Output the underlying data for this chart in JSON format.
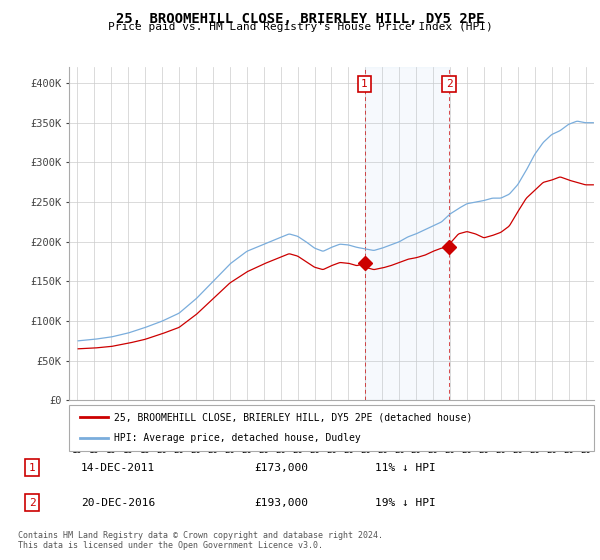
{
  "title": "25, BROOMEHILL CLOSE, BRIERLEY HILL, DY5 2PE",
  "subtitle": "Price paid vs. HM Land Registry's House Price Index (HPI)",
  "legend_line1": "25, BROOMEHILL CLOSE, BRIERLEY HILL, DY5 2PE (detached house)",
  "legend_line2": "HPI: Average price, detached house, Dudley",
  "transaction1_label": "1",
  "transaction1_date": "14-DEC-2011",
  "transaction1_price": 173000,
  "transaction1_note": "11% ↓ HPI",
  "transaction2_label": "2",
  "transaction2_date": "20-DEC-2016",
  "transaction2_price": 193000,
  "transaction2_note": "19% ↓ HPI",
  "footnote1": "Contains HM Land Registry data © Crown copyright and database right 2024.",
  "footnote2": "This data is licensed under the Open Government Licence v3.0.",
  "red_color": "#cc0000",
  "blue_color": "#7aaddc",
  "background_color": "#ffffff",
  "grid_color": "#cccccc",
  "ylim": [
    0,
    420000
  ],
  "yticks": [
    0,
    50000,
    100000,
    150000,
    200000,
    250000,
    300000,
    350000,
    400000
  ],
  "ytick_labels": [
    "£0",
    "£50K",
    "£100K",
    "£150K",
    "£200K",
    "£250K",
    "£300K",
    "£350K",
    "£400K"
  ],
  "transaction1_year": 2011.95,
  "transaction2_year": 2016.95,
  "xlim_start": 1995.0,
  "xlim_end": 2025.5,
  "xtick_years": [
    1995,
    1996,
    1997,
    1998,
    1999,
    2000,
    2001,
    2002,
    2003,
    2004,
    2005,
    2006,
    2007,
    2008,
    2009,
    2010,
    2011,
    2012,
    2013,
    2014,
    2015,
    2016,
    2017,
    2018,
    2019,
    2020,
    2021,
    2022,
    2023,
    2024,
    2025
  ]
}
